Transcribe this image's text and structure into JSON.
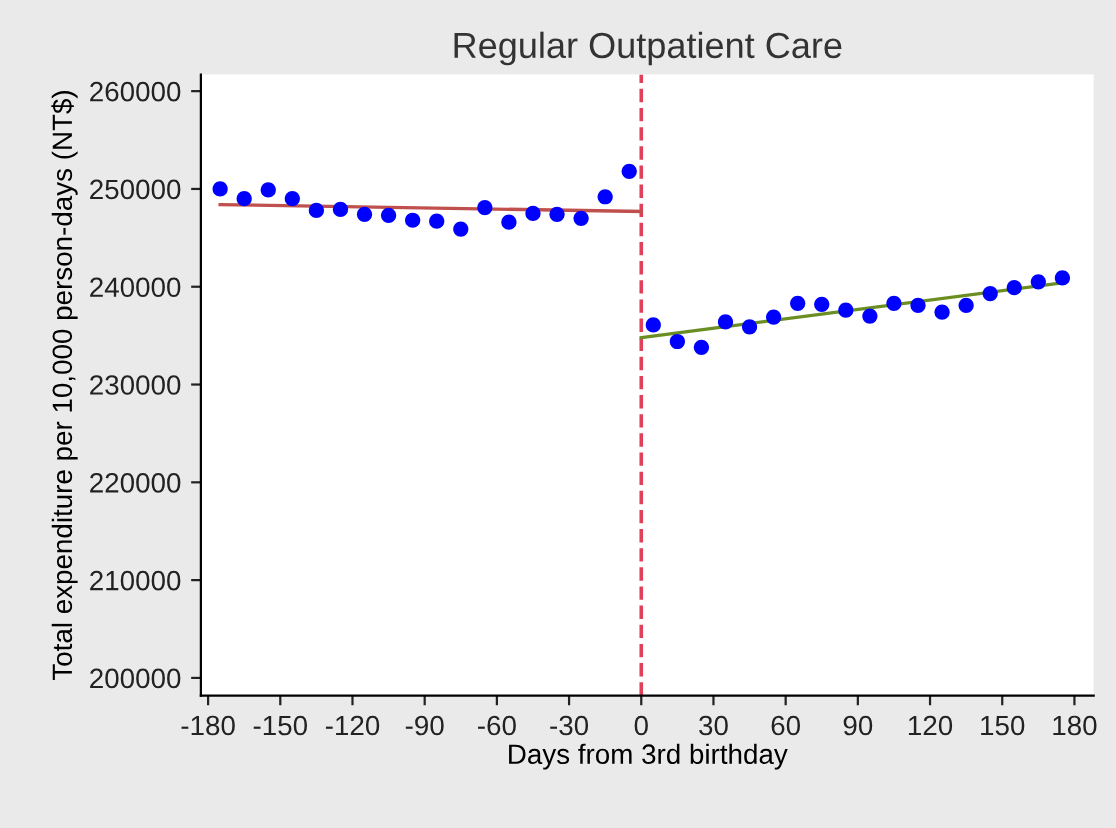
{
  "chart_data": {
    "type": "scatter",
    "title": "Regular Outpatient Care",
    "xlabel": "Days from 3rd birthday",
    "ylabel": "Total expenditure per 10,000 person-days (NT$)",
    "series": [
      {
        "marker": "circle",
        "color": "#0000ff",
        "x": [
          -175,
          -165,
          -155,
          -145,
          -135,
          -125,
          -115,
          -105,
          -95,
          -85,
          -75,
          -65,
          -55,
          -45,
          -35,
          -25,
          -15,
          -5
        ],
        "values": [
          250000,
          249000,
          249900,
          249000,
          247800,
          247900,
          247400,
          247300,
          246800,
          246700,
          245900,
          248100,
          246600,
          247500,
          247400,
          247000,
          249200,
          251800
        ]
      },
      {
        "marker": "circle",
        "color": "#0000ff",
        "x": [
          5,
          15,
          25,
          35,
          45,
          55,
          65,
          75,
          85,
          95,
          105,
          115,
          125,
          135,
          145,
          155,
          165,
          175
        ],
        "values": [
          236100,
          234400,
          233800,
          236400,
          235900,
          236900,
          238300,
          238200,
          237600,
          237000,
          238300,
          238100,
          237400,
          238100,
          239300,
          239900,
          240500,
          240900
        ]
      },
      {
        "type": "line",
        "color": "#c0504d",
        "x": [
          -175,
          0
        ],
        "values": [
          248400,
          247700
        ]
      },
      {
        "type": "line",
        "color": "#6b8e23",
        "x": [
          0,
          175
        ],
        "values": [
          234800,
          240400
        ]
      }
    ],
    "ref_lines": [
      {
        "axis": "x",
        "value": 0,
        "color": "#e0405a",
        "line_style": "dashed"
      }
    ],
    "xlim": [
      -183,
      188
    ],
    "xticks": [
      -180,
      -150,
      -120,
      -90,
      -60,
      -30,
      0,
      30,
      60,
      90,
      120,
      150,
      180
    ],
    "ylim": [
      198200,
      261700
    ],
    "yticks": [
      200000,
      210000,
      220000,
      230000,
      240000,
      250000,
      260000
    ],
    "grid": false
  }
}
